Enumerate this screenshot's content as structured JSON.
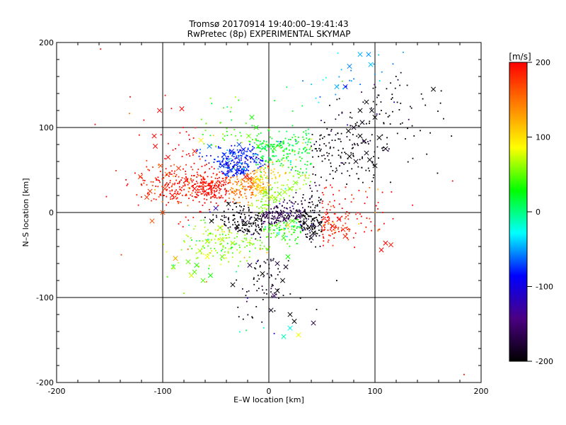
{
  "chart_data": {
    "type": "scatter",
    "title": "Tromsø 20170914 19:40:00–19:41:43",
    "subtitle": "RwPretec (8p) EXPERIMENTAL SKYMAP",
    "xlabel": "E–W location [km]",
    "ylabel": "N–S location [km]",
    "xlim": [
      -200,
      200
    ],
    "ylim": [
      -200,
      200
    ],
    "xticks": [
      -200,
      -100,
      0,
      100,
      200
    ],
    "yticks": [
      -200,
      -100,
      0,
      100,
      200
    ],
    "grid": true,
    "colorbar": {
      "label": "[m/s]",
      "min": -200,
      "max": 200,
      "ticks": [
        200,
        100,
        0,
        -100,
        -200
      ],
      "colormap": "rainbow-black",
      "stops": [
        "#000000",
        "#4b0082",
        "#0000ff",
        "#00ffff",
        "#00ff00",
        "#ffff00",
        "#ff8000",
        "#ff0000"
      ]
    },
    "series": [
      {
        "marker": "x",
        "points": [
          [
            -103,
            120
          ],
          [
            -82,
            122
          ],
          [
            -108,
            90
          ],
          [
            -107,
            78
          ],
          [
            -95,
            65
          ],
          [
            -102,
            55
          ],
          [
            -85,
            52
          ],
          [
            -78,
            38
          ],
          [
            -96,
            45
          ],
          [
            -112,
            25
          ],
          [
            -98,
            28
          ],
          [
            -91,
            20
          ],
          [
            -70,
            28
          ],
          [
            -62,
            33
          ],
          [
            -55,
            30
          ],
          [
            -60,
            25
          ],
          [
            -48,
            30
          ],
          [
            -44,
            55
          ],
          [
            -39,
            58
          ],
          [
            -36,
            50
          ],
          [
            -30,
            48
          ],
          [
            -25,
            47
          ],
          [
            -22,
            42
          ],
          [
            -18,
            40
          ],
          [
            -15,
            33
          ],
          [
            -10,
            30
          ],
          [
            -8,
            25
          ],
          [
            -4,
            24
          ],
          [
            2,
            18
          ],
          [
            6,
            16
          ],
          [
            10,
            22
          ],
          [
            15,
            24
          ],
          [
            20,
            28
          ],
          [
            25,
            35
          ],
          [
            -28,
            80
          ],
          [
            -19,
            90
          ],
          [
            -16,
            112
          ],
          [
            -12,
            100
          ],
          [
            -35,
            72
          ],
          [
            -42,
            68
          ],
          [
            -24,
            74
          ],
          [
            -10,
            78
          ],
          [
            -5,
            76
          ],
          [
            5,
            75
          ],
          [
            -64,
            85
          ],
          [
            -56,
            78
          ],
          [
            -70,
            72
          ],
          [
            -38,
            10
          ],
          [
            -50,
            5
          ],
          [
            -54,
            -10
          ],
          [
            -46,
            -18
          ],
          [
            -30,
            -16
          ],
          [
            -22,
            -12
          ],
          [
            -12,
            -8
          ],
          [
            -5,
            -4
          ],
          [
            10,
            -3
          ],
          [
            15,
            -8
          ],
          [
            18,
            -15
          ],
          [
            22,
            -10
          ],
          [
            28,
            -5
          ],
          [
            34,
            -12
          ],
          [
            38,
            -18
          ],
          [
            42,
            -24
          ],
          [
            48,
            -14
          ],
          [
            55,
            -10
          ],
          [
            60,
            -16
          ],
          [
            66,
            -8
          ],
          [
            70,
            -20
          ],
          [
            72,
            -28
          ],
          [
            40,
            -30
          ],
          [
            14,
            -30
          ],
          [
            -34,
            -36
          ],
          [
            -44,
            -32
          ],
          [
            -58,
            -34
          ],
          [
            -65,
            -45
          ],
          [
            -76,
            -58
          ],
          [
            -90,
            -64
          ],
          [
            -73,
            -74
          ],
          [
            -62,
            -80
          ],
          [
            -55,
            -74
          ],
          [
            -34,
            -85
          ],
          [
            -18,
            -62
          ],
          [
            -6,
            -72
          ],
          [
            8,
            -60
          ],
          [
            16,
            -64
          ],
          [
            18,
            -52
          ],
          [
            13,
            -80
          ],
          [
            8,
            -92
          ],
          [
            5,
            -98
          ],
          [
            2,
            -115
          ],
          [
            20,
            -120
          ],
          [
            24,
            -128
          ],
          [
            20,
            -136
          ],
          [
            28,
            -144
          ],
          [
            14,
            -146
          ],
          [
            42,
            -130
          ],
          [
            -110,
            -10
          ],
          [
            -100,
            0
          ],
          [
            -121,
            42
          ],
          [
            -115,
            18
          ],
          [
            75,
            96
          ],
          [
            80,
            100
          ],
          [
            86,
            90
          ],
          [
            90,
            84
          ],
          [
            92,
            70
          ],
          [
            95,
            62
          ],
          [
            100,
            55
          ],
          [
            76,
            66
          ],
          [
            82,
            60
          ],
          [
            64,
            148
          ],
          [
            72,
            148
          ],
          [
            76,
            172
          ],
          [
            86,
            186
          ],
          [
            94,
            186
          ],
          [
            96,
            174
          ],
          [
            92,
            130
          ],
          [
            97,
            120
          ],
          [
            100,
            112
          ],
          [
            88,
            106
          ],
          [
            86,
            120
          ],
          [
            104,
            88
          ],
          [
            110,
            75
          ],
          [
            106,
            -44
          ],
          [
            110,
            -36
          ],
          [
            115,
            -38
          ],
          [
            155,
            145
          ],
          [
            -44,
            -52
          ],
          [
            -58,
            -52
          ],
          [
            -68,
            -62
          ],
          [
            -70,
            -70
          ],
          [
            -88,
            -54
          ]
        ]
      },
      {
        "marker": "dot",
        "count": 2400
      }
    ]
  }
}
